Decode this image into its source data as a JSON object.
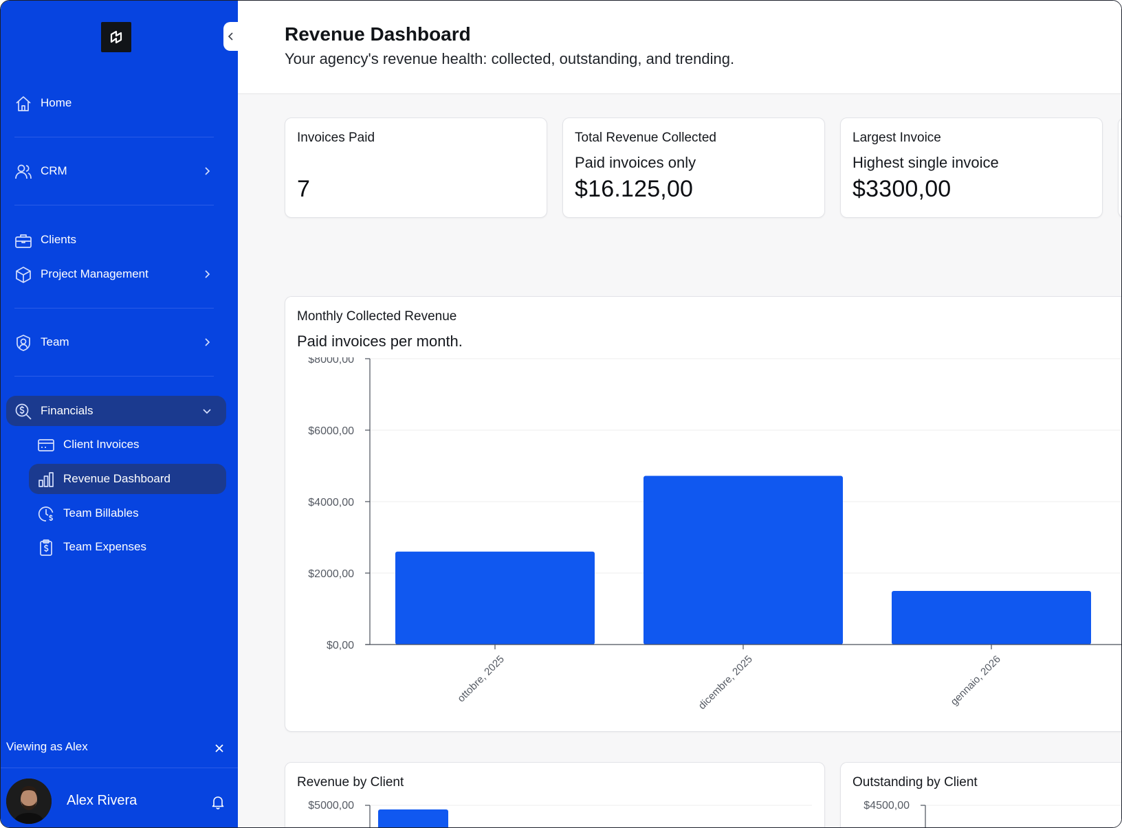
{
  "sidebar": {
    "collapse_icon": "chevron-left-icon",
    "logo_icon": "app-logo-icon",
    "nav": [
      {
        "label": "Home",
        "icon": "home-icon"
      },
      {
        "label": "CRM",
        "icon": "users-icon"
      },
      {
        "label": "Clients",
        "icon": "briefcase-icon"
      },
      {
        "label": "Project Management",
        "icon": "box-icon"
      },
      {
        "label": "Team",
        "icon": "team-icon"
      },
      {
        "label": "Financials",
        "icon": "search-dollar-icon"
      }
    ],
    "financials_sub": [
      {
        "label": "Client Invoices",
        "icon": "credit-card-icon"
      },
      {
        "label": "Revenue Dashboard",
        "icon": "bar-chart-icon"
      },
      {
        "label": "Team Billables",
        "icon": "clock-dollar-icon"
      },
      {
        "label": "Team Expenses",
        "icon": "clipboard-dollar-icon"
      }
    ],
    "viewing_as": "Viewing as Alex",
    "user_name": "Alex Rivera"
  },
  "header": {
    "title": "Revenue Dashboard",
    "subtitle": "Your agency's revenue health: collected, outstanding, and trending."
  },
  "stats": [
    {
      "title": "Invoices Paid",
      "desc": "",
      "value": "7"
    },
    {
      "title": "Total Revenue Collected",
      "desc": "Paid invoices only",
      "value": "$16.125,00"
    },
    {
      "title": "Largest Invoice",
      "desc": "Highest single invoice",
      "value": "$3300,00"
    }
  ],
  "monthly_chart": {
    "title": "Monthly Collected Revenue",
    "desc": "Paid invoices per month."
  },
  "revenue_by_client": {
    "title": "Revenue by Client",
    "top_tick": "$5000,00"
  },
  "outstanding_by_client": {
    "title": "Outstanding by Client",
    "top_tick": "$4500,00"
  },
  "colors": {
    "sidebar": "#0744e0",
    "active": "#1b3a8f",
    "bar": "#1058f0"
  },
  "chart_data": [
    {
      "type": "bar",
      "title": "Monthly Collected Revenue",
      "subtitle": "Paid invoices per month.",
      "categories": [
        "ottobre, 2025",
        "dicembre, 2025",
        "gennaio, 2026"
      ],
      "values": [
        2600,
        4720,
        1500
      ],
      "ylim": [
        0,
        8000
      ],
      "yticks": [
        0,
        2000,
        4000,
        6000,
        8000
      ],
      "ytick_labels": [
        "$0,00",
        "$2000,00",
        "$4000,00",
        "$6000,00",
        "$8000,00"
      ],
      "grid": true,
      "color": "#1058f0"
    }
  ]
}
